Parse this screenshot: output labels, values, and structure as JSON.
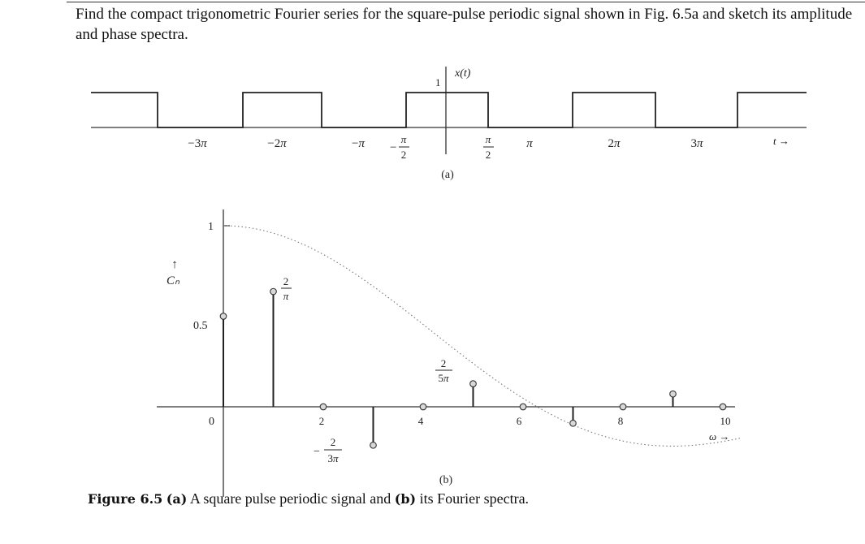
{
  "problem": {
    "text": "Find the compact trigonometric Fourier series for the square-pulse periodic signal shown in Fig. 6.5a and sketch its amplitude and phase spectra."
  },
  "figure_a": {
    "signal_label": "x(t)",
    "amplitude_label": "1",
    "x_axis_label": "t →",
    "ticks": [
      "−3π",
      "−2π",
      "−π",
      "π/2 (neg)",
      "π/2",
      "π",
      "2π",
      "3π"
    ],
    "panel_label": "(a)"
  },
  "figure_b": {
    "y_axis_label": "Cₙ",
    "x_axis_label": "ω →",
    "panel_label": "(b)"
  },
  "caption": {
    "figure_number": "Figure 6.5",
    "part_a": "(a)",
    "text_a": "A square pulse periodic signal and",
    "part_b": "(b)",
    "text_b": "its Fourier spectra."
  },
  "chart_data": {
    "type": "scatter",
    "title": "",
    "xlabel": "ω",
    "ylabel": "Cn",
    "x": [
      0,
      1,
      2,
      3,
      4,
      5,
      6,
      7,
      8,
      9,
      10
    ],
    "values": [
      0.5,
      0.6366,
      0,
      -0.2122,
      0,
      0.1273,
      0,
      -0.0909,
      0,
      0.0707,
      0
    ],
    "x_ticks": [
      "0",
      "2",
      "4",
      "6",
      "8",
      "10"
    ],
    "y_ticks": [
      "0",
      "0.5",
      "1"
    ],
    "annotations": [
      "2/π",
      "2/(5π)",
      "−2/(3π)"
    ],
    "xlim": [
      0,
      10.5
    ],
    "ylim": [
      -0.25,
      1
    ],
    "envelope": "dotted sinc curve through stem tips, starting at 1 at ω=0",
    "grid": false
  }
}
